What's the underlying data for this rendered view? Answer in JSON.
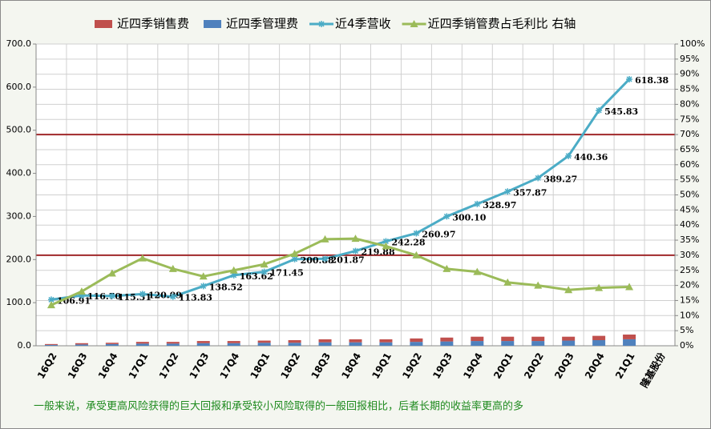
{
  "chart_data": {
    "type": "combo",
    "categories": [
      "16Q2",
      "16Q3",
      "16Q4",
      "17Q1",
      "17Q2",
      "17Q3",
      "17Q4",
      "18Q1",
      "18Q2",
      "18Q3",
      "18Q4",
      "19Q1",
      "19Q2",
      "19Q3",
      "19Q4",
      "20Q1",
      "20Q2",
      "20Q3",
      "20Q4",
      "21Q1",
      "隆基股份"
    ],
    "series": [
      {
        "name": "近四季销售费",
        "kind": "bar",
        "color": "#c0504d",
        "values": [
          2,
          3,
          3,
          4,
          4,
          5,
          5,
          5,
          6,
          7,
          7,
          7,
          8,
          9,
          10,
          10,
          10,
          9,
          10,
          11,
          null
        ]
      },
      {
        "name": "近四季管理费",
        "kind": "bar",
        "color": "#4f81bd",
        "values": [
          2,
          3,
          4,
          5,
          5,
          6,
          6,
          7,
          7,
          8,
          8,
          8,
          9,
          10,
          11,
          11,
          11,
          12,
          13,
          15,
          null
        ]
      },
      {
        "name": "近4季营收",
        "kind": "line",
        "marker": "star",
        "color": "#4bacc6",
        "values": [
          106.91,
          116.7,
          115.31,
          120.09,
          113.83,
          138.52,
          163.62,
          171.45,
          200.88,
          201.87,
          219.88,
          242.28,
          260.97,
          300.1,
          328.97,
          357.87,
          389.27,
          440.36,
          545.83,
          618.38,
          null
        ],
        "value_labels": [
          "106.91",
          "116.70",
          "115.31",
          "120.09",
          "113.83",
          "138.52",
          "163.62",
          "171.45",
          "200.88",
          "201.87",
          "219.88",
          "242.28",
          "260.97",
          "300.10",
          "328.97",
          "357.87",
          "389.27",
          "440.36",
          "545.83",
          "618.38",
          null
        ]
      },
      {
        "name": "近四季销管费占毛利比 右轴",
        "kind": "line",
        "marker": "triangle",
        "color": "#9bbb59",
        "axis": "y2",
        "values": [
          13.5,
          18,
          24,
          29,
          25.5,
          23,
          25,
          27,
          30.5,
          35.3,
          35.5,
          33,
          30,
          25.5,
          24.5,
          21,
          20,
          18.5,
          19.2,
          19.5,
          null
        ]
      }
    ],
    "reference_lines": [
      {
        "axis": "y2",
        "value": 70,
        "color": "#a0282a"
      },
      {
        "axis": "y2",
        "value": 30,
        "color": "#a0282a"
      }
    ],
    "ylim": [
      0,
      700
    ],
    "yticks": [
      {
        "value": 0,
        "label": "0.0"
      },
      {
        "value": 100,
        "label": "100.0"
      },
      {
        "value": 200,
        "label": "200.0"
      },
      {
        "value": 300,
        "label": "300.0"
      },
      {
        "value": 400,
        "label": "400.0"
      },
      {
        "value": 500,
        "label": "500.0"
      },
      {
        "value": 600,
        "label": "600.0"
      },
      {
        "value": 700,
        "label": "700.0"
      }
    ],
    "y2lim": [
      0,
      100
    ],
    "y2ticks": [
      {
        "value": 0,
        "label": "0%"
      },
      {
        "value": 5,
        "label": "5%"
      },
      {
        "value": 10,
        "label": "10%"
      },
      {
        "value": 15,
        "label": "15%"
      },
      {
        "value": 20,
        "label": "20%"
      },
      {
        "value": 25,
        "label": "25%"
      },
      {
        "value": 30,
        "label": "30%"
      },
      {
        "value": 35,
        "label": "35%"
      },
      {
        "value": 40,
        "label": "40%"
      },
      {
        "value": 45,
        "label": "45%"
      },
      {
        "value": 50,
        "label": "50%"
      },
      {
        "value": 55,
        "label": "55%"
      },
      {
        "value": 60,
        "label": "60%"
      },
      {
        "value": 65,
        "label": "65%"
      },
      {
        "value": 70,
        "label": "70%"
      },
      {
        "value": 75,
        "label": "75%"
      },
      {
        "value": 80,
        "label": "80%"
      },
      {
        "value": 85,
        "label": "85%"
      },
      {
        "value": 90,
        "label": "90%"
      },
      {
        "value": 95,
        "label": "95%"
      },
      {
        "value": 100,
        "label": "100%"
      }
    ],
    "grid": true,
    "legend": "top",
    "annotations": [
      "一般来说，承受更高风险获得的巨大回报和承受较小风险取得的一般回报相比，后者长期的收益率更高的多"
    ]
  }
}
